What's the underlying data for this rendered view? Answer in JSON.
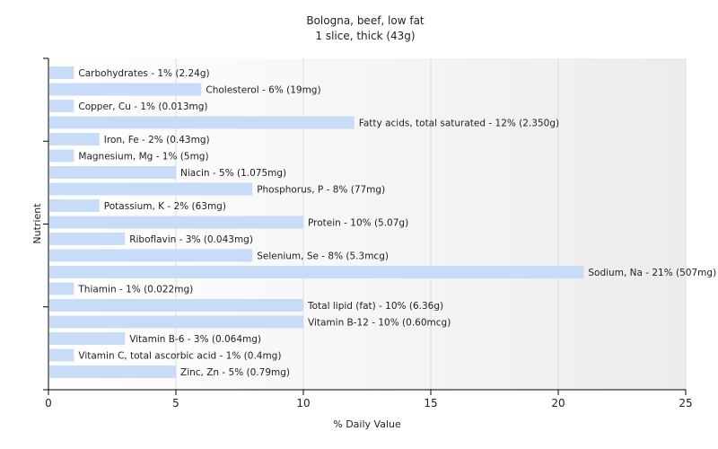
{
  "chart_data": {
    "type": "bar",
    "orientation": "horizontal",
    "title": "Bologna, beef, low fat",
    "subtitle": "1 slice, thick (43g)",
    "xlabel": "% Daily Value",
    "ylabel": "Nutrient",
    "xlim": [
      0,
      25
    ],
    "xticks": [
      0,
      5,
      10,
      15,
      20,
      25
    ],
    "grid": "vertical",
    "bar_color": "#c8dcf8",
    "categories": [
      "Carbohydrates - 1% (2.24g)",
      "Cholesterol - 6% (19mg)",
      "Copper, Cu - 1% (0.013mg)",
      "Fatty acids, total saturated - 12% (2.350g)",
      "Iron, Fe - 2% (0.43mg)",
      "Magnesium, Mg - 1% (5mg)",
      "Niacin - 5% (1.075mg)",
      "Phosphorus, P - 8% (77mg)",
      "Potassium, K - 2% (63mg)",
      "Protein - 10% (5.07g)",
      "Riboflavin - 3% (0.043mg)",
      "Selenium, Se - 8% (5.3mcg)",
      "Sodium, Na - 21% (507mg)",
      "Thiamin - 1% (0.022mg)",
      "Total lipid (fat) - 10% (6.36g)",
      "Vitamin B-12 - 10% (0.60mcg)",
      "Vitamin B-6 - 3% (0.064mg)",
      "Vitamin C, total ascorbic acid - 1% (0.4mg)",
      "Zinc, Zn - 5% (0.79mg)"
    ],
    "values": [
      1,
      6,
      1,
      12,
      2,
      1,
      5,
      8,
      2,
      10,
      3,
      8,
      21,
      1,
      10,
      10,
      3,
      1,
      5
    ]
  }
}
